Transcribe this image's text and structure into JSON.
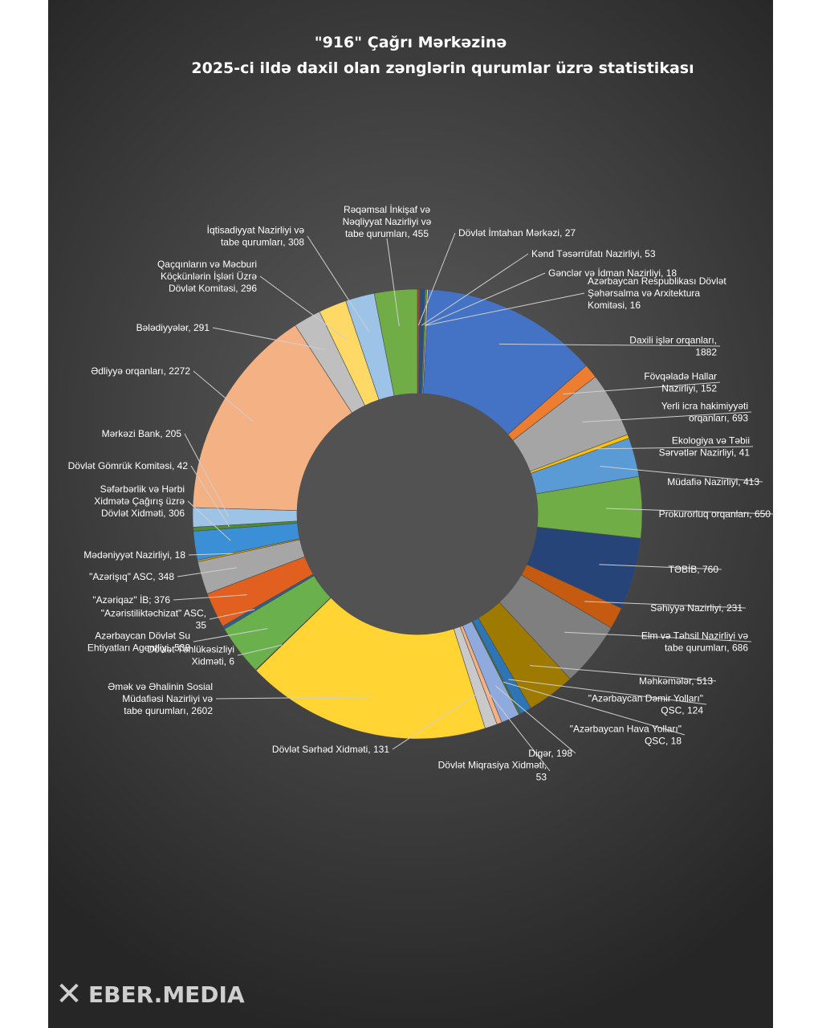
{
  "chart_data": {
    "type": "pie",
    "style": "doughnut",
    "title": "\"916\" Çağrı Mərkəzinə",
    "subtitle": "2025-ci ildə daxil olan zənglərin qurumlar üzrə statistikası",
    "slices": [
      {
        "label": "Dövlət İmtahan Mərkəzi, 27",
        "value": 27,
        "color": "#9c4a2a"
      },
      {
        "label": "Kənd Təsərrüfatı Nazirliyi, 53",
        "value": 53,
        "color": "#2a4f80"
      },
      {
        "label": "Gənclər və İdman Nazirliyi, 18",
        "value": 18,
        "color": "#5e8f34"
      },
      {
        "label": "Azərbaycan Respublikası Dövlət Şəhərsalma və Arxitektura Komitəsi, 16",
        "value": 16,
        "color": "#c9c9c9"
      },
      {
        "label": "Daxili işlər orqanları, 1882",
        "value": 1882,
        "color": "#4472c4"
      },
      {
        "label": "Fövqəladə Hallar Nazirliyi, 152",
        "value": 152,
        "color": "#ed7d31"
      },
      {
        "label": "Yerli icra hakimiyyəti orqanları, 693",
        "value": 693,
        "color": "#a5a5a5"
      },
      {
        "label": "Ekologiya və Təbii Sərvətlər Nazirliyi, 41",
        "value": 41,
        "color": "#ffc000"
      },
      {
        "label": "Müdafiə Nazirliyi, 413",
        "value": 413,
        "color": "#5b9bd5"
      },
      {
        "label": "Prokurorluq orqanları, 650",
        "value": 650,
        "color": "#70ad47"
      },
      {
        "label": "TƏBİB, 760",
        "value": 760,
        "color": "#264478"
      },
      {
        "label": "Səhiyyə Nazirliyi, 231",
        "value": 231,
        "color": "#c55a11"
      },
      {
        "label": "Elm və Təhsil Nazirliyi və tabe qurumları, 686",
        "value": 686,
        "color": "#7f7f7f"
      },
      {
        "label": "Məhkəmələr, 513",
        "value": 513,
        "color": "#9e7b00"
      },
      {
        "label": "\"Azərbaycan Dəmir Yolları\" QSC, 124",
        "value": 124,
        "color": "#2e75b6"
      },
      {
        "label": "\"Azərbaycan Hava Yolları\" QSC, 18",
        "value": 18,
        "color": "#4e7a2b"
      },
      {
        "label": "Digər, 198",
        "value": 198,
        "color": "#8faadc"
      },
      {
        "label": "Dövlət Miqrasiya Xidməti, 53",
        "value": 53,
        "color": "#f4b183"
      },
      {
        "label": "Dövlət Sərhəd Xidməti, 131",
        "value": 131,
        "color": "#c9c9c9"
      },
      {
        "label": "Əmək və Əhalinin Sosial Müdafiəsi Nazirliyi və tabe qurumları, 2602",
        "value": 2602,
        "color": "#ffd433"
      },
      {
        "label": "Dövlət Təhlükəsizliyi Xidməti, 6",
        "value": 6,
        "color": "#2f5597"
      },
      {
        "label": "Azərbaycan Dövlət Su Ehtiyatları Agentliyi, 538",
        "value": 538,
        "color": "#6ab04c"
      },
      {
        "label": "\"Azəristiliktəchizat\" ASC, 35",
        "value": 35,
        "color": "#2e5f8a"
      },
      {
        "label": "\"Azəriqaz\" İB; 376",
        "value": 376,
        "color": "#e2601f"
      },
      {
        "label": "\"Azərişıq\" ASC, 348",
        "value": 348,
        "color": "#a6a6a6"
      },
      {
        "label": "Mədəniyyət Nazirliyi, 18",
        "value": 18,
        "color": "#d9a300"
      },
      {
        "label": "Səfərbərlik və Hərbi Xidmətə Çağırış üzrə Dövlət Xidməti, 306",
        "value": 306,
        "color": "#3a8fd6"
      },
      {
        "label": "Dövlət Gömrük Komitəsi, 42",
        "value": 42,
        "color": "#4f8c32"
      },
      {
        "label": "Mərkəzi Bank, 205",
        "value": 205,
        "color": "#9dc3e6"
      },
      {
        "label": "Ədliyyə orqanları, 2272",
        "value": 2272,
        "color": "#f4b183"
      },
      {
        "label": "Bələdiyyələr, 291",
        "value": 291,
        "color": "#bfbfbf"
      },
      {
        "label": "Qaçqınların və Məcburi Köçkünlərin İşləri Üzrə Dövlət Komitəsi, 296",
        "value": 296,
        "color": "#ffd966"
      },
      {
        "label": "İqtisadiyyat Nazirliyi və tabe qurumları, 308",
        "value": 308,
        "color": "#9dc3e6"
      },
      {
        "label": "Rəqəmsal İnkişaf və Nəqliyyat Nazirliyi və tabe qurumları, 455",
        "value": 455,
        "color": "#70ad47"
      }
    ],
    "legend": "none",
    "data_labels": "outside with leader lines"
  },
  "watermark": "EBER.MEDIA",
  "watermark_icon": "x-logo-icon"
}
